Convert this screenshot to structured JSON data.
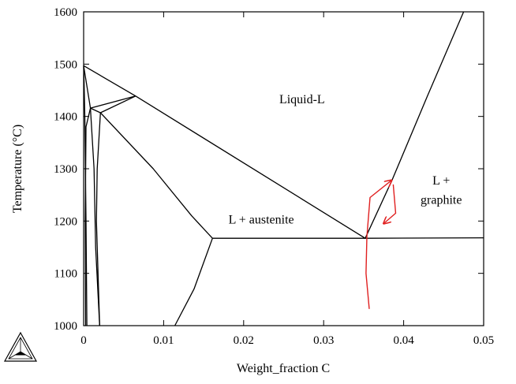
{
  "chart_data": {
    "type": "line",
    "title": "",
    "xlabel": "Weight_fraction C",
    "ylabel": "Temperature (°C)",
    "xlim": [
      0,
      0.05
    ],
    "ylim": [
      1000,
      1600
    ],
    "x_ticks": [
      0,
      0.01,
      0.02,
      0.03,
      0.04,
      0.05
    ],
    "x_tick_labels": [
      "0",
      "0.01",
      "0.02",
      "0.03",
      "0.04",
      "0.05"
    ],
    "y_ticks": [
      1000,
      1100,
      1200,
      1300,
      1400,
      1500,
      1600
    ],
    "y_tick_labels": [
      "1000",
      "1100",
      "1200",
      "1300",
      "1400",
      "1500",
      "1600"
    ],
    "grid": false,
    "ticks_mirrored": true,
    "line_color": "#000000",
    "annotation_color": "#e02020",
    "logo_icon": "triangle-logo-icon",
    "regions": [
      {
        "label": "Liquid-L",
        "x": 0.0273,
        "y": 1425
      },
      {
        "label": "L + austenite",
        "x": 0.0222,
        "y": 1195
      },
      {
        "label": "L +",
        "x": 0.0447,
        "y": 1270
      },
      {
        "label": "graphite",
        "x": 0.0447,
        "y": 1233
      }
    ],
    "series": [
      {
        "points": [
          [
            0,
            1497
          ],
          [
            0.0065,
            1439
          ],
          [
            0.0352,
            1167
          ]
        ]
      },
      {
        "points": [
          [
            0,
            1497
          ],
          [
            0.00085,
            1416
          ],
          [
            0.0065,
            1439
          ]
        ]
      },
      {
        "points": [
          [
            0,
            1497
          ],
          [
            5e-05,
            1470
          ],
          [
            0.00015,
            1400
          ],
          [
            0.0003,
            1200
          ],
          [
            0.0004,
            1000
          ]
        ]
      },
      {
        "points": [
          [
            0.00085,
            1416
          ],
          [
            0.0003,
            1380
          ],
          [
            0.0002,
            1200
          ],
          [
            0.00025,
            1000
          ]
        ]
      },
      {
        "points": [
          [
            0.00085,
            1416
          ],
          [
            0.0021,
            1407
          ]
        ]
      },
      {
        "points": [
          [
            0.0021,
            1407
          ],
          [
            0.0065,
            1439
          ]
        ]
      },
      {
        "points": [
          [
            0.00085,
            1416
          ],
          [
            0.0013,
            1300
          ],
          [
            0.0015,
            1150
          ],
          [
            0.002,
            1000
          ]
        ]
      },
      {
        "points": [
          [
            0.0021,
            1407
          ],
          [
            0.0017,
            1300
          ],
          [
            0.0016,
            1200
          ],
          [
            0.002,
            1000
          ]
        ]
      },
      {
        "points": [
          [
            0.0021,
            1407
          ],
          [
            0.0087,
            1300
          ],
          [
            0.0135,
            1210
          ],
          [
            0.0161,
            1167
          ]
        ]
      },
      {
        "points": [
          [
            0.0161,
            1167
          ],
          [
            0.0138,
            1070
          ],
          [
            0.0114,
            1000
          ]
        ]
      },
      {
        "points": [
          [
            0.0161,
            1167
          ],
          [
            0.0352,
            1167
          ],
          [
            0.05,
            1168
          ]
        ]
      },
      {
        "points": [
          [
            0.0352,
            1167
          ],
          [
            0.0386,
            1280
          ],
          [
            0.043,
            1440
          ],
          [
            0.0475,
            1600
          ]
        ]
      }
    ],
    "annotations": [
      {
        "points": [
          [
            0.0357,
            1032
          ],
          [
            0.0353,
            1100
          ],
          [
            0.0354,
            1170
          ],
          [
            0.0358,
            1245
          ],
          [
            0.0385,
            1278
          ]
        ],
        "arrow_end": true
      },
      {
        "points": [
          [
            0.0387,
            1270
          ],
          [
            0.039,
            1215
          ],
          [
            0.0375,
            1195
          ]
        ],
        "arrow_end": true
      }
    ]
  }
}
